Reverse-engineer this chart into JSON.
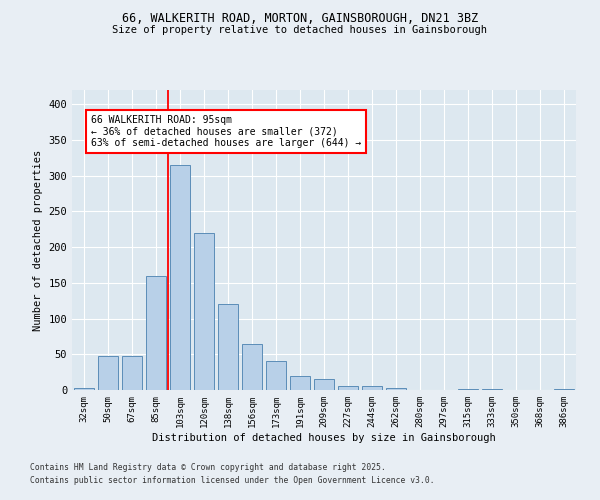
{
  "title_line1": "66, WALKERITH ROAD, MORTON, GAINSBOROUGH, DN21 3BZ",
  "title_line2": "Size of property relative to detached houses in Gainsborough",
  "xlabel": "Distribution of detached houses by size in Gainsborough",
  "ylabel": "Number of detached properties",
  "categories": [
    "32sqm",
    "50sqm",
    "67sqm",
    "85sqm",
    "103sqm",
    "120sqm",
    "138sqm",
    "156sqm",
    "173sqm",
    "191sqm",
    "209sqm",
    "227sqm",
    "244sqm",
    "262sqm",
    "280sqm",
    "297sqm",
    "315sqm",
    "333sqm",
    "350sqm",
    "368sqm",
    "386sqm"
  ],
  "values": [
    3,
    47,
    47,
    160,
    315,
    220,
    120,
    65,
    40,
    20,
    15,
    5,
    5,
    3,
    0,
    0,
    2,
    2,
    0,
    0,
    2
  ],
  "bar_color": "#b8d0e8",
  "bar_edge_color": "#5b8db8",
  "red_line_x": 3.5,
  "annotation_text": "66 WALKERITH ROAD: 95sqm\n← 36% of detached houses are smaller (372)\n63% of semi-detached houses are larger (644) →",
  "annotation_box_color": "white",
  "annotation_box_edge": "red",
  "ylim": [
    0,
    420
  ],
  "yticks": [
    0,
    50,
    100,
    150,
    200,
    250,
    300,
    350,
    400
  ],
  "background_color": "#e8eef4",
  "plot_background": "#dde8f0",
  "footer_line1": "Contains HM Land Registry data © Crown copyright and database right 2025.",
  "footer_line2": "Contains public sector information licensed under the Open Government Licence v3.0."
}
